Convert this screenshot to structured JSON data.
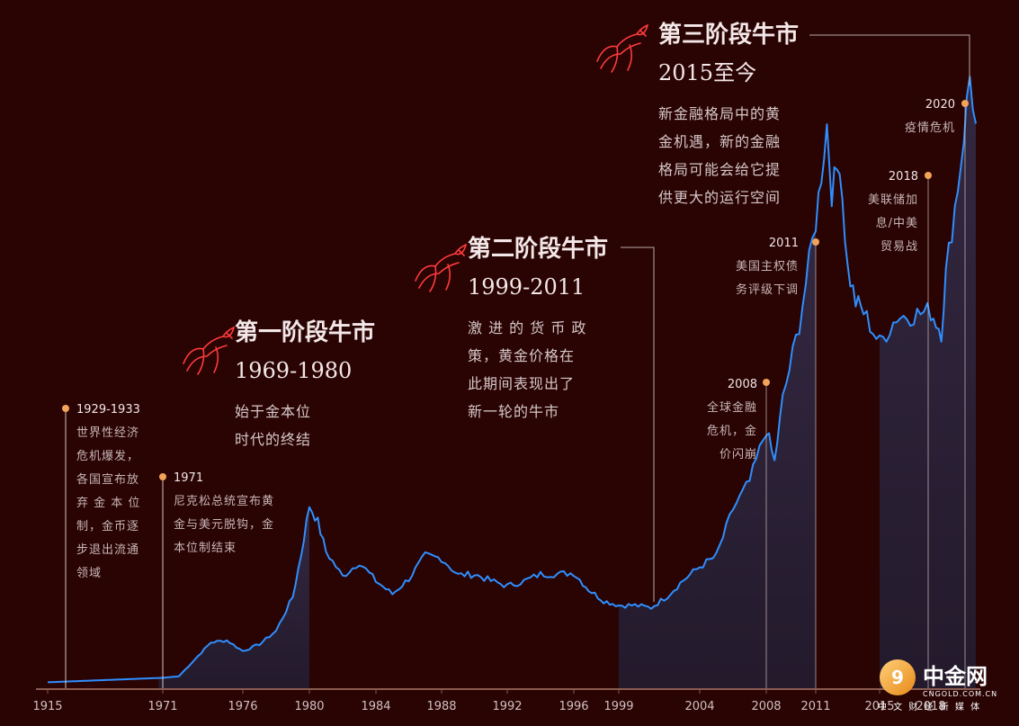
{
  "chart_data": {
    "type": "area",
    "title": "",
    "xlabel": "",
    "ylabel": "",
    "x_tick_labels": [
      "1915",
      "1971",
      "1976",
      "1980",
      "1984",
      "1988",
      "1992",
      "1996",
      "1999",
      "2004",
      "2008",
      "2011",
      "2015",
      "2018"
    ],
    "series": [
      {
        "values_description_free": true,
        "x": [
          1915,
          1971,
          1972,
          1973,
          1974,
          1975,
          1976,
          1977,
          1978,
          1979,
          1979.5,
          1980,
          1980.5,
          1981,
          1982,
          1983,
          1984,
          1985,
          1986,
          1987,
          1988,
          1989,
          1990,
          1991,
          1992,
          1993,
          1994,
          1995,
          1996,
          1997,
          1998,
          1999,
          2000,
          2001,
          2002,
          2003,
          2004,
          2005,
          2006,
          2007,
          2008,
          2008.5,
          2009,
          2010,
          2011,
          2011.7,
          2012,
          2012.5,
          2013,
          2013.5,
          2014,
          2015,
          2016,
          2017,
          2018,
          2018.7,
          2019,
          2020,
          2020.6,
          2021
        ],
        "values": [
          20,
          35,
          40,
          97,
          154,
          161,
          125,
          148,
          193,
          307,
          450,
          615,
          560,
          460,
          376,
          424,
          361,
          317,
          368,
          446,
          437,
          381,
          383,
          362,
          344,
          360,
          384,
          384,
          388,
          331,
          294,
          279,
          279,
          271,
          310,
          364,
          409,
          445,
          604,
          696,
          872,
          760,
          972,
          1225,
          1571,
          1895,
          1670,
          1780,
          1411,
          1300,
          1266,
          1160,
          1250,
          1257,
          1268,
          1200,
          1393,
          1770,
          2060,
          1900
        ],
        "name": ""
      }
    ],
    "ylim": [
      0,
      2200
    ],
    "xlim": [
      1915,
      2021
    ],
    "phases": [
      {
        "title": "第一阶段牛市",
        "years": "1969-1980",
        "desc": [
          "始于金本位",
          "时代的终结"
        ]
      },
      {
        "title": "第二阶段牛市",
        "years": "1999-2011",
        "desc": [
          "激 进 的 货 币 政",
          "策，黄金价格在",
          "此期间表现出了",
          "新一轮的牛市"
        ]
      },
      {
        "title": "第三阶段牛市",
        "years": "2015至今",
        "desc": [
          "新金融格局中的黄",
          "金机遇，新的金融",
          "格局可能会给它提",
          "供更大的运行空间"
        ]
      }
    ],
    "events": [
      {
        "year": "1929-1933",
        "text": [
          "世界性经济",
          "危机爆发，",
          "各国宣布放",
          "弃 金 本 位",
          "制，金币逐",
          "步退出流通",
          "领域"
        ]
      },
      {
        "year": "1971",
        "text": [
          "尼克松总统宣布黄",
          "金与美元脱钩，金",
          "本位制结束"
        ]
      },
      {
        "year": "2008",
        "text": [
          "全球金融",
          "危机，金",
          "价闪崩"
        ]
      },
      {
        "year": "2011",
        "text": [
          "美国主权债",
          "务评级下调"
        ]
      },
      {
        "year": "2018",
        "text": [
          "美联储加",
          "息/中美",
          "贸易战"
        ]
      },
      {
        "year": "2020",
        "text": [
          "疫情危机"
        ]
      }
    ]
  },
  "colors": {
    "background": "#2a0303",
    "line": "#2f8fff",
    "area": "#2b2336",
    "axis": "#8a5b4f",
    "dot": "#f3a35a",
    "bull_icon": "#ff3b3b"
  },
  "logo": {
    "name": "中金网",
    "domain": "CNGOLD.COM.CN",
    "tagline": "中 文 财 经 新 媒 体"
  }
}
